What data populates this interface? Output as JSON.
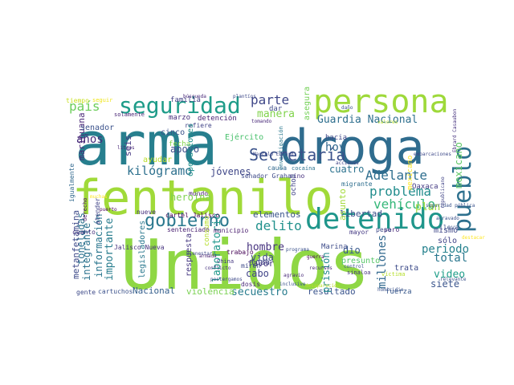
{
  "cloud": {
    "words": [
      {
        "t": "Unidos",
        "c": "#8fd744"
      },
      {
        "t": "arma",
        "c": "#277f8e"
      },
      {
        "t": "droga",
        "c": "#2f6c8e"
      },
      {
        "t": "fentanilo",
        "c": "#a0da39"
      },
      {
        "t": "persona",
        "c": "#9ed93a"
      },
      {
        "t": "detenido",
        "c": "#1f968b"
      },
      {
        "t": "seguridad",
        "c": "#1e9c89"
      },
      {
        "t": "pueblo",
        "c": "#2d708e"
      },
      {
        "t": "gobierno",
        "c": "#2a788e"
      },
      {
        "t": "Secretaría",
        "c": "#3b528b"
      },
      {
        "t": "Adelante",
        "c": "#2e6e8e"
      },
      {
        "t": "problema",
        "c": "#228d8d"
      },
      {
        "t": "Guardia Nacional",
        "c": "#2e6f8e"
      },
      {
        "t": "vehículo",
        "c": "#35b779"
      },
      {
        "t": "kilógramo",
        "c": "#2d708e"
      },
      {
        "t": "parte",
        "c": "#3f4788"
      },
      {
        "t": "país",
        "c": "#6ccd5a"
      },
      {
        "t": "manera",
        "c": "#81d34d"
      },
      {
        "t": "delito",
        "c": "#21918c"
      },
      {
        "t": "elementos",
        "c": "#3a538b"
      },
      {
        "t": "jóvenes",
        "c": "#3f4788"
      },
      {
        "t": "apoyo",
        "c": "#3d4e8a"
      },
      {
        "t": "hoy",
        "c": "#31678e"
      },
      {
        "t": "cuatro",
        "c": "#2c728e"
      },
      {
        "t": "mexicano",
        "c": "#5cc863"
      },
      {
        "t": "toneladas",
        "c": "#2c718e"
      },
      {
        "t": "periodo",
        "c": "#26828e"
      },
      {
        "t": "total",
        "c": "#2a778e"
      },
      {
        "t": "dio",
        "c": "#38598c"
      },
      {
        "t": "video",
        "c": "#1f9e89"
      },
      {
        "t": "libertad",
        "c": "#3c4f8a"
      },
      {
        "t": "Nacional",
        "c": "#355f8d"
      },
      {
        "t": "secuestro",
        "c": "#287c8e"
      },
      {
        "t": "violencia",
        "c": "#7ad151"
      },
      {
        "t": "resultado",
        "c": "#3a548c"
      },
      {
        "t": "millones",
        "c": "#31688e"
      },
      {
        "t": "siete",
        "c": "#3a548c"
      },
      {
        "t": "vida",
        "c": "#3e4989"
      },
      {
        "t": "cabo",
        "c": "#414487"
      },
      {
        "t": "toda",
        "c": "#3f4788"
      },
      {
        "t": "hombre",
        "c": "#46337f"
      },
      {
        "t": "favor",
        "c": "#453781"
      },
      {
        "t": "laboratorio",
        "c": "#1f988b"
      },
      {
        "t": "importante",
        "c": "#287d8e"
      },
      {
        "t": "información",
        "c": "#2a768e"
      },
      {
        "t": "metanfetamina",
        "c": "#3e4a89"
      },
      {
        "t": "integrante",
        "c": "#2c738e"
      },
      {
        "t": "prisión",
        "c": "#23898e"
      },
      {
        "t": "años",
        "c": "#472d7b"
      },
      {
        "t": "plan",
        "c": "#9bd93c"
      },
      {
        "t": "trata",
        "c": "#3e4c8a"
      },
      {
        "t": "mayor",
        "c": "#443983"
      },
      {
        "t": "sólo",
        "c": "#414487"
      },
      {
        "t": "mismo",
        "c": "#3f4889"
      },
      {
        "t": "fuerza",
        "c": "#38588c"
      },
      {
        "t": "seis",
        "c": "#453882"
      },
      {
        "t": "marihuana",
        "c": "#482576"
      },
      {
        "t": "senador",
        "c": "#3b528b"
      },
      {
        "t": "legisladores",
        "c": "#2a788e"
      },
      {
        "t": "respuesta",
        "c": "#453781"
      },
      {
        "t": "cartuchos",
        "c": "#3b518b"
      },
      {
        "t": "asunto",
        "c": "#a2da37"
      },
      {
        "t": "Marina",
        "c": "#3e4c8a"
      },
      {
        "t": "presunto",
        "c": "#56c667"
      },
      {
        "t": "Ejército",
        "c": "#4ac16d"
      },
      {
        "t": "cinco",
        "c": "#3b528b"
      },
      {
        "t": "fecha",
        "c": "#84d44b"
      },
      {
        "t": "ayudar",
        "c": "#bade28"
      },
      {
        "t": "marzo",
        "c": "#472c7a"
      },
      {
        "t": "detención",
        "c": "#482173"
      },
      {
        "t": "asegura",
        "c": "#73d056"
      },
      {
        "t": "mundo",
        "c": "#482071"
      },
      {
        "t": "hacia",
        "c": "#3f4889"
      },
      {
        "t": "nueve",
        "c": "#46327e"
      },
      {
        "t": "municipio",
        "c": "#481b6d"
      },
      {
        "t": "sentenciado",
        "c": "#481f70"
      },
      {
        "t": "cuanto",
        "c": "#46307e"
      },
      {
        "t": "Jalisco Nueva",
        "c": "#46327e"
      },
      {
        "t": "cartel Jalisco",
        "c": "#440154"
      },
      {
        "t": "consumo",
        "c": "#b5de2b"
      },
      {
        "t": "gente",
        "c": "#3e4a89"
      },
      {
        "t": "igualmente",
        "c": "#31688e"
      },
      {
        "t": "mexicano ",
        "c": "#fde725"
      },
      {
        "t": "pero",
        "c": "#482878"
      },
      {
        "t": "sino",
        "c": "#46307e"
      },
      {
        "t": "causa",
        "c": "#31688e"
      },
      {
        "t": "ocho",
        "c": "#414487"
      },
      {
        "t": "senador Graham",
        "c": "#3e4a89"
      },
      {
        "t": "Oaxaca",
        "c": "#443a83"
      },
      {
        "t": "migrante",
        "c": "#2e6e8e"
      },
      {
        "t": "familia",
        "c": "#424186"
      },
      {
        "t": "tiempo",
        "c": "#c8e020"
      },
      {
        "t": "seguir",
        "c": "#efe51c"
      },
      {
        "t": "solamente",
        "c": "#482475"
      },
      {
        "t": "dar",
        "c": "#3e4a89"
      },
      {
        "t": "lleva",
        "c": "#3b528b"
      },
      {
        "t": "sinaloa",
        "c": "#46327e"
      },
      {
        "t": "peso",
        "c": "#3e4a89"
      },
      {
        "t": "dosis",
        "c": "#482878"
      },
      {
        "t": "atender",
        "c": "#414487"
      },
      {
        "t": "derecho",
        "c": "#481467"
      },
      {
        "t": "puerto",
        "c": "#440154"
      },
      {
        "t": "muchas",
        "c": "#fde725"
      },
      {
        "t": "cocaína",
        "c": "#2c728e"
      },
      {
        "t": "trabajo",
        "c": "#440154"
      },
      {
        "t": "China",
        "c": "#453781"
      },
      {
        "t": "miren",
        "c": "#3e4a89"
      },
      {
        "t": "investigación",
        "c": "#2a788e"
      },
      {
        "t": "heroína",
        "c": "#7fd34e"
      },
      {
        "t": "refiere",
        "c": "#414487"
      },
      {
        "t": "seguridad pública",
        "c": "#3b528b"
      },
      {
        "t": "valores",
        "c": "#bade28"
      },
      {
        "t": "acciones",
        "c": "#414487"
      },
      {
        "t": "Bienestar",
        "c": "#3e4a89"
      },
      {
        "t": "programa",
        "c": "#3b528b"
      },
      {
        "t": "destacar",
        "c": "#fde725"
      },
      {
        "t": "guerra",
        "c": "#440154"
      },
      {
        "t": "recursos",
        "c": "#482878"
      },
      {
        "t": "control",
        "c": "#3b528b"
      },
      {
        "t": "víctima",
        "c": "#b5de2b"
      },
      {
        "t": "homicidio",
        "c": "#3b528b"
      },
      {
        "t": "embarcaciones",
        "c": "#3e4a89"
      },
      {
        "t": "operaciones",
        "c": "#21918c"
      },
      {
        "t": "republicano",
        "c": "#414487"
      },
      {
        "t": "relevante",
        "c": "#3b528b"
      },
      {
        "t": "agravio",
        "c": "#482878"
      },
      {
        "t": "litros",
        "c": "#482878"
      },
      {
        "t": "Ebrard Casaubon",
        "c": "#46327e"
      },
      {
        "t": "plantíos",
        "c": "#3e4a89"
      },
      {
        "t": "búsqueda",
        "c": "#482878"
      },
      {
        "t": "daño",
        "c": "#3b528b"
      },
      {
        "t": "Marcelo Ebrard",
        "c": "#3e4a89"
      },
      {
        "t": "armada",
        "c": "#481f70"
      },
      {
        "t": "inclusive",
        "c": "#3b528b"
      },
      {
        "t": "desaparecido",
        "c": "#bade28"
      },
      {
        "t": "postergamos",
        "c": "#3e4a89"
      },
      {
        "t": "agravado",
        "c": "#3b528b"
      },
      {
        "t": "tomando",
        "c": "#482878"
      },
      {
        "t": "conflicto",
        "c": "#46327e"
      }
    ]
  }
}
